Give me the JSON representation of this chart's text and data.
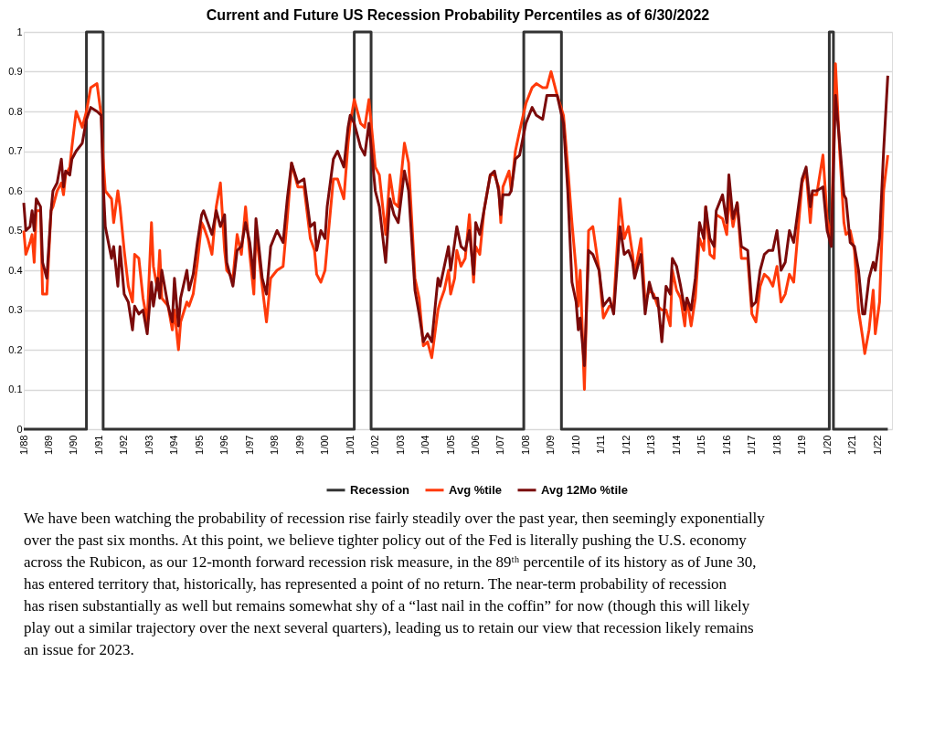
{
  "chart_data": {
    "type": "line",
    "title": "Current and Future US Recession Probability Percentiles as of 6/30/2022",
    "x": [
      "1988-01",
      "1988-02",
      "1988-04",
      "1988-05",
      "1988-06",
      "1988-07",
      "1988-09",
      "1988-10",
      "1988-12",
      "1989-02",
      "1989-03",
      "1989-05",
      "1989-07",
      "1989-08",
      "1989-09",
      "1989-11",
      "1989-12",
      "1990-02",
      "1990-05",
      "1990-07",
      "1990-09",
      "1990-12",
      "1991-02",
      "1991-03",
      "1991-04",
      "1991-07",
      "1991-08",
      "1991-10",
      "1991-11",
      "1992-01",
      "1992-03",
      "1992-05",
      "1992-06",
      "1992-08",
      "1992-10",
      "1992-12",
      "1993-02",
      "1993-03",
      "1993-05",
      "1993-06",
      "1993-07",
      "1993-10",
      "1993-12",
      "1994-01",
      "1994-03",
      "1994-04",
      "1994-07",
      "1994-08",
      "1994-10",
      "1994-12",
      "1995-02",
      "1995-03",
      "1995-05",
      "1995-07",
      "1995-09",
      "1995-11",
      "1996-01",
      "1996-02",
      "1996-05",
      "1996-07",
      "1996-09",
      "1996-11",
      "1997-01",
      "1997-03",
      "1997-04",
      "1997-07",
      "1997-09",
      "1997-11",
      "1998-02",
      "1998-05",
      "1998-07",
      "1998-09",
      "1998-12",
      "1999-03",
      "1999-06",
      "1999-08",
      "1999-09",
      "1999-11",
      "2000-01",
      "2000-02",
      "2000-05",
      "2000-07",
      "2000-10",
      "2000-12",
      "2001-01",
      "2001-03",
      "2001-06",
      "2001-08",
      "2001-10",
      "2002-01",
      "2002-03",
      "2002-06",
      "2002-08",
      "2002-10",
      "2002-12",
      "2003-03",
      "2003-05",
      "2003-08",
      "2003-10",
      "2003-12",
      "2004-02",
      "2004-04",
      "2004-07",
      "2004-08",
      "2004-10",
      "2004-12",
      "2005-01",
      "2005-03",
      "2005-04",
      "2005-06",
      "2005-08",
      "2005-10",
      "2005-12",
      "2006-01",
      "2006-03",
      "2006-05",
      "2006-08",
      "2006-10",
      "2006-12",
      "2007-01",
      "2007-02",
      "2007-05",
      "2007-06",
      "2007-08",
      "2007-10",
      "2008-01",
      "2008-04",
      "2008-06",
      "2008-09",
      "2008-11",
      "2009-01",
      "2009-04",
      "2009-07",
      "2009-09",
      "2009-11",
      "2010-01",
      "2010-02",
      "2010-03",
      "2010-05",
      "2010-07",
      "2010-09",
      "2010-12",
      "2011-02",
      "2011-05",
      "2011-07",
      "2011-10",
      "2011-12",
      "2012-02",
      "2012-04",
      "2012-05",
      "2012-08",
      "2012-10",
      "2012-12",
      "2013-02",
      "2013-04",
      "2013-06",
      "2013-08",
      "2013-10",
      "2013-11",
      "2014-01",
      "2014-03",
      "2014-05",
      "2014-06",
      "2014-08",
      "2014-10",
      "2014-12",
      "2015-02",
      "2015-03",
      "2015-05",
      "2015-07",
      "2015-08",
      "2015-11",
      "2016-01",
      "2016-02",
      "2016-04",
      "2016-06",
      "2016-08",
      "2016-11",
      "2017-01",
      "2017-03",
      "2017-05",
      "2017-07",
      "2017-09",
      "2017-11",
      "2018-01",
      "2018-03",
      "2018-05",
      "2018-07",
      "2018-09",
      "2019-01",
      "2019-03",
      "2019-05",
      "2019-06",
      "2019-08",
      "2019-11",
      "2020-01",
      "2020-03",
      "2020-05",
      "2020-07",
      "2020-09",
      "2020-10",
      "2020-12",
      "2021-02",
      "2021-04",
      "2021-06",
      "2021-07",
      "2021-09",
      "2021-11",
      "2021-12",
      "2022-02",
      "2022-04",
      "2022-06"
    ],
    "series": [
      {
        "name": "Recession",
        "color": "#333333",
        "x": [
          "1988-01",
          "1990-07",
          "1990-07",
          "1991-03",
          "1991-03",
          "2001-03",
          "2001-03",
          "2001-11",
          "2001-11",
          "2007-12",
          "2007-12",
          "2009-06",
          "2009-06",
          "2020-02",
          "2020-02",
          "2020-04",
          "2020-04",
          "2022-06"
        ],
        "values": [
          0,
          0,
          1,
          1,
          0,
          0,
          1,
          1,
          0,
          0,
          1,
          1,
          0,
          0,
          1,
          1,
          0,
          0
        ]
      },
      {
        "name": "Avg %tile",
        "color": "#ff3a0a",
        "values": [
          0.5,
          0.44,
          0.47,
          0.49,
          0.42,
          0.55,
          0.55,
          0.34,
          0.34,
          0.55,
          0.56,
          0.6,
          0.62,
          0.59,
          0.64,
          0.66,
          0.71,
          0.8,
          0.76,
          0.8,
          0.86,
          0.87,
          0.79,
          0.68,
          0.6,
          0.58,
          0.52,
          0.6,
          0.56,
          0.45,
          0.36,
          0.32,
          0.44,
          0.43,
          0.33,
          0.27,
          0.52,
          0.41,
          0.35,
          0.45,
          0.33,
          0.31,
          0.25,
          0.3,
          0.2,
          0.27,
          0.32,
          0.31,
          0.34,
          0.42,
          0.52,
          0.51,
          0.48,
          0.44,
          0.56,
          0.62,
          0.45,
          0.4,
          0.38,
          0.49,
          0.44,
          0.56,
          0.44,
          0.34,
          0.5,
          0.36,
          0.27,
          0.38,
          0.4,
          0.41,
          0.53,
          0.67,
          0.61,
          0.61,
          0.48,
          0.45,
          0.39,
          0.37,
          0.4,
          0.46,
          0.63,
          0.63,
          0.58,
          0.72,
          0.77,
          0.83,
          0.77,
          0.76,
          0.83,
          0.66,
          0.64,
          0.49,
          0.64,
          0.57,
          0.56,
          0.72,
          0.67,
          0.38,
          0.33,
          0.21,
          0.22,
          0.18,
          0.3,
          0.32,
          0.35,
          0.4,
          0.34,
          0.38,
          0.45,
          0.41,
          0.43,
          0.54,
          0.37,
          0.46,
          0.44,
          0.55,
          0.64,
          0.64,
          0.61,
          0.52,
          0.61,
          0.65,
          0.6,
          0.7,
          0.75,
          0.82,
          0.86,
          0.87,
          0.86,
          0.86,
          0.9,
          0.84,
          0.79,
          0.66,
          0.52,
          0.4,
          0.31,
          0.4,
          0.1,
          0.5,
          0.51,
          0.4,
          0.28,
          0.31,
          0.31,
          0.58,
          0.48,
          0.51,
          0.44,
          0.39,
          0.48,
          0.32,
          0.35,
          0.34,
          0.31,
          0.3,
          0.3,
          0.26,
          0.4,
          0.35,
          0.33,
          0.26,
          0.33,
          0.26,
          0.33,
          0.48,
          0.45,
          0.56,
          0.44,
          0.43,
          0.54,
          0.53,
          0.49,
          0.59,
          0.51,
          0.57,
          0.43,
          0.43,
          0.29,
          0.27,
          0.36,
          0.39,
          0.38,
          0.36,
          0.41,
          0.32,
          0.34,
          0.39,
          0.37,
          0.62,
          0.65,
          0.52,
          0.59,
          0.59,
          0.69,
          0.53,
          0.48,
          0.92,
          0.7,
          0.52,
          0.49,
          0.5,
          0.45,
          0.3,
          0.23,
          0.19,
          0.25,
          0.35,
          0.24,
          0.32,
          0.6,
          0.69
        ]
      },
      {
        "name": "Avg 12Mo %tile",
        "color": "#7a0a0a",
        "values": [
          0.57,
          0.5,
          0.51,
          0.55,
          0.5,
          0.58,
          0.56,
          0.42,
          0.38,
          0.55,
          0.6,
          0.62,
          0.68,
          0.61,
          0.65,
          0.64,
          0.68,
          0.7,
          0.72,
          0.78,
          0.81,
          0.8,
          0.79,
          0.62,
          0.51,
          0.43,
          0.46,
          0.36,
          0.46,
          0.34,
          0.32,
          0.25,
          0.31,
          0.29,
          0.3,
          0.24,
          0.37,
          0.31,
          0.38,
          0.33,
          0.4,
          0.31,
          0.27,
          0.38,
          0.26,
          0.33,
          0.4,
          0.35,
          0.39,
          0.47,
          0.54,
          0.55,
          0.52,
          0.49,
          0.55,
          0.51,
          0.54,
          0.42,
          0.36,
          0.45,
          0.46,
          0.52,
          0.47,
          0.38,
          0.53,
          0.38,
          0.34,
          0.46,
          0.5,
          0.47,
          0.58,
          0.67,
          0.62,
          0.63,
          0.51,
          0.52,
          0.45,
          0.5,
          0.48,
          0.56,
          0.68,
          0.7,
          0.66,
          0.76,
          0.79,
          0.77,
          0.71,
          0.69,
          0.77,
          0.6,
          0.56,
          0.42,
          0.58,
          0.54,
          0.52,
          0.65,
          0.6,
          0.35,
          0.29,
          0.22,
          0.24,
          0.22,
          0.38,
          0.36,
          0.41,
          0.46,
          0.4,
          0.47,
          0.51,
          0.46,
          0.45,
          0.5,
          0.39,
          0.52,
          0.49,
          0.55,
          0.64,
          0.65,
          0.6,
          0.54,
          0.59,
          0.59,
          0.6,
          0.68,
          0.69,
          0.77,
          0.81,
          0.79,
          0.78,
          0.84,
          0.84,
          0.84,
          0.77,
          0.6,
          0.37,
          0.32,
          0.25,
          0.28,
          0.16,
          0.45,
          0.44,
          0.4,
          0.31,
          0.33,
          0.29,
          0.51,
          0.44,
          0.45,
          0.42,
          0.38,
          0.44,
          0.29,
          0.37,
          0.33,
          0.33,
          0.22,
          0.36,
          0.34,
          0.43,
          0.41,
          0.36,
          0.3,
          0.33,
          0.3,
          0.38,
          0.52,
          0.48,
          0.56,
          0.48,
          0.46,
          0.55,
          0.59,
          0.52,
          0.64,
          0.53,
          0.57,
          0.46,
          0.45,
          0.31,
          0.32,
          0.4,
          0.44,
          0.45,
          0.45,
          0.5,
          0.4,
          0.42,
          0.5,
          0.47,
          0.63,
          0.66,
          0.56,
          0.6,
          0.6,
          0.61,
          0.5,
          0.46,
          0.84,
          0.72,
          0.59,
          0.58,
          0.47,
          0.46,
          0.4,
          0.29,
          0.29,
          0.38,
          0.42,
          0.4,
          0.48,
          0.7,
          0.89
        ]
      }
    ],
    "xlim": [
      "1988-01",
      "2022-08"
    ],
    "xticks": [
      {
        "value": "1988-01",
        "label": "1/88"
      },
      {
        "value": "1989-01",
        "label": "1/89"
      },
      {
        "value": "1990-01",
        "label": "1/90"
      },
      {
        "value": "1991-01",
        "label": "1/91"
      },
      {
        "value": "1992-01",
        "label": "1/92"
      },
      {
        "value": "1993-01",
        "label": "1/93"
      },
      {
        "value": "1994-01",
        "label": "1/94"
      },
      {
        "value": "1995-01",
        "label": "1/95"
      },
      {
        "value": "1996-01",
        "label": "1/96"
      },
      {
        "value": "1997-01",
        "label": "1/97"
      },
      {
        "value": "1998-01",
        "label": "1/98"
      },
      {
        "value": "1999-01",
        "label": "1/99"
      },
      {
        "value": "2000-01",
        "label": "1/00"
      },
      {
        "value": "2001-01",
        "label": "1/01"
      },
      {
        "value": "2002-01",
        "label": "1/02"
      },
      {
        "value": "2003-01",
        "label": "1/03"
      },
      {
        "value": "2004-01",
        "label": "1/04"
      },
      {
        "value": "2005-01",
        "label": "1/05"
      },
      {
        "value": "2006-01",
        "label": "1/06"
      },
      {
        "value": "2007-01",
        "label": "1/07"
      },
      {
        "value": "2008-01",
        "label": "1/08"
      },
      {
        "value": "2009-01",
        "label": "1/09"
      },
      {
        "value": "2010-01",
        "label": "1/10"
      },
      {
        "value": "2011-01",
        "label": "1/11"
      },
      {
        "value": "2012-01",
        "label": "1/12"
      },
      {
        "value": "2013-01",
        "label": "1/13"
      },
      {
        "value": "2014-01",
        "label": "1/14"
      },
      {
        "value": "2015-01",
        "label": "1/15"
      },
      {
        "value": "2016-01",
        "label": "1/16"
      },
      {
        "value": "2017-01",
        "label": "1/17"
      },
      {
        "value": "2018-01",
        "label": "1/18"
      },
      {
        "value": "2019-01",
        "label": "1/19"
      },
      {
        "value": "2020-01",
        "label": "1/20"
      },
      {
        "value": "2021-01",
        "label": "1/21"
      },
      {
        "value": "2022-01",
        "label": "1/22"
      }
    ],
    "ylim": [
      0,
      1
    ],
    "yticks": [
      0,
      0.1,
      0.2,
      0.3,
      0.4,
      0.5,
      0.6,
      0.7,
      0.8,
      0.9,
      1
    ],
    "grid": "y",
    "legend": "bottom",
    "line_style": "solid",
    "marker": "none",
    "annotations": [
      "We have been watching the probability of recession rise fairly steadily over the past year, then seemingly exponentially over the past six months.  At this point, we believe tighter policy out of the Fed is literally pushing the U.S. economy across the Rubicon, as our 12-month forward recession risk measure, in the 89ᵗʰ percentile of its history as of June 30, has entered territory that, historically, has represented a point of no return.  The near-term probability of recession has risen substantially as well but remains somewhat shy of a “last nail in the coffin” for now (though this will likely play out a similar trajectory over the next several quarters), leading us to retain our view that recession likely remains an issue for 2023."
    ]
  }
}
